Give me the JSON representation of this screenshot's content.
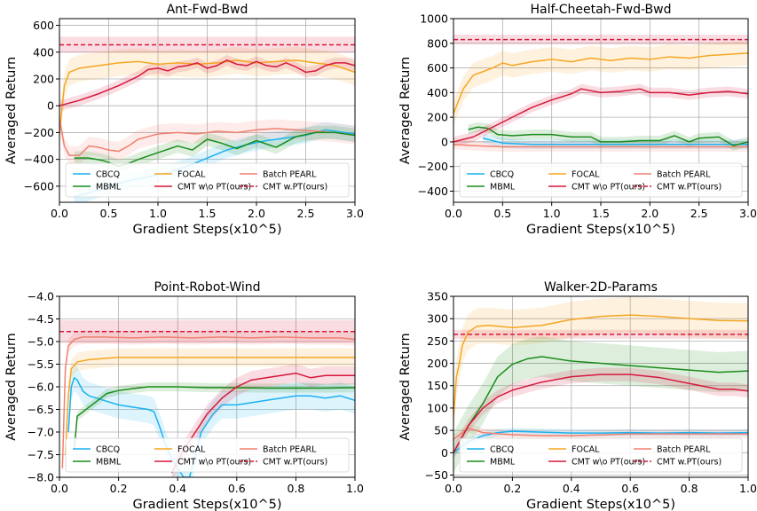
{
  "chart_data": [
    {
      "type": "line",
      "title": "Ant-Fwd-Bwd",
      "xlabel": "Gradient Steps(x10^5)",
      "ylabel": "Averaged Return",
      "xlim": [
        0,
        3.0
      ],
      "ylim": [
        -720,
        650
      ],
      "xticks": [
        "0.0",
        "0.5",
        "1.0",
        "1.5",
        "2.0",
        "2.5",
        "3.0"
      ],
      "yticks": [
        "600",
        "400",
        "200",
        "0",
        "−200",
        "−400",
        "−600"
      ],
      "grid": true,
      "legend_placement": "bottom",
      "series": [
        {
          "name": "CBCQ",
          "color": "#1ab2f0",
          "band": 60,
          "x": [
            0.15,
            0.3,
            0.5,
            0.7,
            0.9,
            1.1,
            1.3,
            1.5,
            1.7,
            1.9,
            2.1,
            2.3,
            2.5,
            2.6,
            2.7,
            2.8,
            2.9,
            3.0
          ],
          "y": [
            -680,
            -650,
            -600,
            -560,
            -530,
            -500,
            -450,
            -390,
            -330,
            -290,
            -260,
            -240,
            -220,
            -200,
            -180,
            -190,
            -200,
            -210
          ]
        },
        {
          "name": "FOCAL",
          "color": "#f5a623",
          "band": 100,
          "x": [
            0.0,
            0.05,
            0.1,
            0.2,
            0.4,
            0.6,
            0.8,
            1.0,
            1.2,
            1.4,
            1.6,
            1.8,
            2.0,
            2.2,
            2.4,
            2.6,
            2.8,
            3.0
          ],
          "y": [
            -200,
            150,
            250,
            280,
            300,
            320,
            330,
            310,
            320,
            310,
            320,
            340,
            320,
            330,
            340,
            320,
            300,
            250
          ]
        },
        {
          "name": "Batch PEARL",
          "color": "#f08070",
          "band": 70,
          "x": [
            0.0,
            0.05,
            0.1,
            0.2,
            0.3,
            0.4,
            0.5,
            0.6,
            0.7,
            0.8,
            1.0,
            1.2,
            1.4,
            1.6,
            1.8,
            2.0,
            2.2,
            2.4,
            2.6,
            2.8,
            3.0
          ],
          "y": [
            -100,
            -300,
            -370,
            -370,
            -300,
            -310,
            -330,
            -340,
            -300,
            -250,
            -210,
            -200,
            -210,
            -190,
            -200,
            -180,
            -170,
            -180,
            -190,
            -200,
            -220
          ]
        },
        {
          "name": "MBML",
          "color": "#1a8c1a",
          "band": 50,
          "x": [
            0.15,
            0.3,
            0.45,
            0.6,
            0.7,
            0.8,
            1.0,
            1.2,
            1.35,
            1.5,
            1.65,
            1.8,
            2.0,
            2.2,
            2.4,
            2.6,
            2.8,
            3.0
          ],
          "y": [
            -390,
            -390,
            -410,
            -450,
            -430,
            -400,
            -350,
            -300,
            -330,
            -250,
            -280,
            -320,
            -260,
            -310,
            -230,
            -200,
            -200,
            -220
          ]
        },
        {
          "name": "CMT w\\o PT(ours)",
          "color": "#d7183c",
          "band": 40,
          "x": [
            0.0,
            0.2,
            0.4,
            0.6,
            0.8,
            0.9,
            1.0,
            1.1,
            1.2,
            1.3,
            1.4,
            1.5,
            1.6,
            1.7,
            1.8,
            1.9,
            2.0,
            2.1,
            2.2,
            2.3,
            2.4,
            2.5,
            2.6,
            2.7,
            2.8,
            2.9,
            3.0
          ],
          "y": [
            0,
            40,
            90,
            150,
            220,
            270,
            280,
            260,
            290,
            300,
            320,
            280,
            300,
            340,
            310,
            300,
            330,
            300,
            290,
            320,
            290,
            250,
            260,
            300,
            320,
            320,
            300
          ]
        },
        {
          "name": "CMT w.PT(ours)",
          "color": "#d7183c",
          "dashed": true,
          "band": 60,
          "x": [
            0.0,
            3.0
          ],
          "y": [
            455,
            455
          ]
        }
      ]
    },
    {
      "type": "line",
      "title": "Half-Cheetah-Fwd-Bwd",
      "xlabel": "Gradient Steps(x10^5)",
      "ylabel": "Averaged Return",
      "xlim": [
        0,
        3.0
      ],
      "ylim": [
        -490,
        1000
      ],
      "xticks": [
        "0.0",
        "0.5",
        "1.0",
        "1.5",
        "2.0",
        "2.5",
        "3.0"
      ],
      "yticks": [
        "1000",
        "800",
        "600",
        "400",
        "200",
        "0",
        "−200",
        "−400"
      ],
      "grid": true,
      "legend_placement": "bottom",
      "series": [
        {
          "name": "CBCQ",
          "color": "#1ab2f0",
          "band": 40,
          "x": [
            0.3,
            0.5,
            0.8,
            1.0,
            1.5,
            2.0,
            2.5,
            3.0
          ],
          "y": [
            30,
            -10,
            -20,
            -20,
            -20,
            -20,
            -20,
            -20
          ]
        },
        {
          "name": "FOCAL",
          "color": "#f5a623",
          "band": 100,
          "x": [
            0.0,
            0.1,
            0.2,
            0.3,
            0.4,
            0.5,
            0.6,
            0.8,
            1.0,
            1.2,
            1.4,
            1.6,
            1.8,
            2.0,
            2.2,
            2.4,
            2.6,
            2.8,
            3.0
          ],
          "y": [
            230,
            430,
            540,
            570,
            600,
            640,
            620,
            650,
            670,
            650,
            680,
            660,
            680,
            670,
            690,
            680,
            700,
            710,
            720
          ]
        },
        {
          "name": "Batch PEARL",
          "color": "#f08070",
          "band": 40,
          "x": [
            0.0,
            0.2,
            0.5,
            1.0,
            1.5,
            2.0,
            2.5,
            3.0
          ],
          "y": [
            -20,
            -30,
            -40,
            -40,
            -40,
            -40,
            -40,
            -40
          ]
        },
        {
          "name": "MBML",
          "color": "#1a8c1a",
          "band": 40,
          "x": [
            0.15,
            0.25,
            0.35,
            0.45,
            0.6,
            0.8,
            1.0,
            1.2,
            1.4,
            1.5,
            1.7,
            1.9,
            2.1,
            2.25,
            2.4,
            2.5,
            2.7,
            2.85,
            3.0
          ],
          "y": [
            100,
            120,
            110,
            60,
            50,
            60,
            60,
            40,
            40,
            0,
            0,
            10,
            10,
            50,
            0,
            30,
            40,
            -30,
            0
          ]
        },
        {
          "name": "CMT w\\o PT(ours)",
          "color": "#d7183c",
          "band": 40,
          "x": [
            0.0,
            0.2,
            0.4,
            0.6,
            0.8,
            1.0,
            1.2,
            1.3,
            1.5,
            1.7,
            1.9,
            2.0,
            2.2,
            2.4,
            2.6,
            2.8,
            3.0
          ],
          "y": [
            0,
            40,
            120,
            200,
            280,
            340,
            390,
            430,
            400,
            410,
            430,
            400,
            400,
            380,
            400,
            410,
            390
          ]
        },
        {
          "name": "CMT w.PT(ours)",
          "color": "#d7183c",
          "dashed": true,
          "band": 40,
          "x": [
            0.0,
            3.0
          ],
          "y": [
            830,
            830
          ]
        }
      ]
    },
    {
      "type": "line",
      "title": "Point-Robot-Wind",
      "xlabel": "Gradient Steps(x10^5)",
      "ylabel": "Averaged Return",
      "xlim": [
        0,
        1.0
      ],
      "ylim": [
        -8.0,
        -4.0
      ],
      "xticks": [
        "0.0",
        "0.2",
        "0.4",
        "0.6",
        "0.8",
        "1.0"
      ],
      "yticks": [
        "−4.0",
        "−4.5",
        "−5.0",
        "−5.5",
        "−6.0",
        "−6.5",
        "−7.0",
        "−7.5",
        "−8.0"
      ],
      "grid": true,
      "legend_placement": "bottom",
      "series": [
        {
          "name": "CBCQ",
          "color": "#1ab2f0",
          "band": 0.3,
          "x": [
            0.03,
            0.04,
            0.05,
            0.06,
            0.08,
            0.1,
            0.15,
            0.2,
            0.25,
            0.3,
            0.32,
            0.34,
            0.36,
            0.38,
            0.4,
            0.42,
            0.44,
            0.46,
            0.48,
            0.5,
            0.52,
            0.55,
            0.6,
            0.65,
            0.7,
            0.75,
            0.8,
            0.85,
            0.9,
            0.95,
            1.0
          ],
          "y": [
            -7.0,
            -6.0,
            -5.8,
            -5.85,
            -6.1,
            -6.2,
            -6.3,
            -6.4,
            -6.45,
            -6.5,
            -6.55,
            -6.9,
            -7.3,
            -7.6,
            -7.8,
            -8.0,
            -8.0,
            -7.5,
            -7.0,
            -6.8,
            -6.6,
            -6.4,
            -6.4,
            -6.35,
            -6.3,
            -6.25,
            -6.2,
            -6.2,
            -6.25,
            -6.2,
            -6.3
          ]
        },
        {
          "name": "FOCAL",
          "color": "#f5a623",
          "band": 0.2,
          "x": [
            0.02,
            0.03,
            0.04,
            0.06,
            0.1,
            0.2,
            0.3,
            0.4,
            0.5,
            0.6,
            0.7,
            0.8,
            0.9,
            1.0
          ],
          "y": [
            -7.5,
            -6.2,
            -5.6,
            -5.45,
            -5.4,
            -5.35,
            -5.35,
            -5.35,
            -5.35,
            -5.35,
            -5.35,
            -5.35,
            -5.35,
            -5.35
          ]
        },
        {
          "name": "Batch PEARL",
          "color": "#f08070",
          "band": 0.15,
          "x": [
            0.01,
            0.02,
            0.03,
            0.05,
            0.08,
            0.15,
            0.25,
            0.35,
            0.45,
            0.55,
            0.65,
            0.75,
            0.85,
            0.95,
            1.0
          ],
          "y": [
            -7.8,
            -5.6,
            -5.1,
            -4.95,
            -4.9,
            -4.9,
            -4.92,
            -4.9,
            -4.92,
            -4.9,
            -4.92,
            -4.9,
            -4.92,
            -4.92,
            -4.95
          ]
        },
        {
          "name": "MBML",
          "color": "#1a8c1a",
          "band": 0.1,
          "x": [
            0.05,
            0.06,
            0.07,
            0.1,
            0.13,
            0.16,
            0.2,
            0.25,
            0.3,
            0.35,
            0.4,
            0.5,
            0.6,
            0.7,
            0.8,
            0.9,
            1.0
          ],
          "y": [
            -7.4,
            -6.65,
            -6.6,
            -6.45,
            -6.3,
            -6.15,
            -6.08,
            -6.04,
            -6.0,
            -6.0,
            -6.0,
            -6.02,
            -6.02,
            -6.03,
            -6.03,
            -6.03,
            -6.02
          ]
        },
        {
          "name": "CMT w\\o PT(ours)",
          "color": "#d7183c",
          "band": 0.2,
          "x": [
            0.38,
            0.42,
            0.46,
            0.5,
            0.55,
            0.6,
            0.65,
            0.7,
            0.75,
            0.8,
            0.85,
            0.9,
            0.95,
            1.0
          ],
          "y": [
            -7.9,
            -7.4,
            -7.0,
            -6.6,
            -6.25,
            -6.0,
            -5.85,
            -5.8,
            -5.75,
            -5.7,
            -5.8,
            -5.75,
            -5.75,
            -5.75
          ]
        },
        {
          "name": "CMT w.PT(ours)",
          "color": "#d7183c",
          "dashed": true,
          "band": 0.25,
          "x": [
            0.0,
            1.0
          ],
          "y": [
            -4.78,
            -4.78
          ]
        }
      ]
    },
    {
      "type": "line",
      "title": "Walker-2D-Params",
      "xlabel": "Gradient Steps(x10^5)",
      "ylabel": "Averaged Return",
      "xlim": [
        0,
        1.0
      ],
      "ylim": [
        -55,
        350
      ],
      "xticks": [
        "0.0",
        "0.2",
        "0.4",
        "0.6",
        "0.8",
        "1.0"
      ],
      "yticks": [
        "350",
        "300",
        "250",
        "200",
        "150",
        "100",
        "50",
        "0",
        "−50"
      ],
      "grid": true,
      "legend_placement": "bottom",
      "series": [
        {
          "name": "CBCQ",
          "color": "#1ab2f0",
          "band": 8,
          "x": [
            0.0,
            0.05,
            0.1,
            0.15,
            0.2,
            0.3,
            0.4,
            0.5,
            0.6,
            0.7,
            0.8,
            0.9,
            1.0
          ],
          "y": [
            0,
            25,
            38,
            45,
            48,
            46,
            44,
            44,
            45,
            44,
            45,
            44,
            45
          ]
        },
        {
          "name": "FOCAL",
          "color": "#f5a623",
          "band": 40,
          "x": [
            0.0,
            0.01,
            0.02,
            0.03,
            0.05,
            0.08,
            0.12,
            0.2,
            0.3,
            0.4,
            0.5,
            0.6,
            0.7,
            0.8,
            0.9,
            1.0
          ],
          "y": [
            80,
            170,
            200,
            240,
            270,
            283,
            285,
            280,
            285,
            298,
            305,
            308,
            305,
            300,
            296,
            295
          ]
        },
        {
          "name": "Batch PEARL",
          "color": "#f08070",
          "band": 10,
          "x": [
            0.0,
            0.05,
            0.1,
            0.2,
            0.3,
            0.4,
            0.5,
            0.6,
            0.7,
            0.8,
            0.9,
            1.0
          ],
          "y": [
            30,
            55,
            45,
            40,
            38,
            38,
            40,
            42,
            42,
            42,
            42,
            42
          ]
        },
        {
          "name": "MBML",
          "color": "#1a8c1a",
          "band": 45,
          "x": [
            0.0,
            0.05,
            0.1,
            0.15,
            0.2,
            0.25,
            0.3,
            0.35,
            0.4,
            0.5,
            0.6,
            0.7,
            0.8,
            0.9,
            1.0
          ],
          "y": [
            0,
            60,
            110,
            170,
            198,
            210,
            215,
            210,
            205,
            200,
            195,
            190,
            185,
            180,
            183
          ]
        },
        {
          "name": "CMT w\\o PT(ours)",
          "color": "#d7183c",
          "band": 15,
          "x": [
            0.0,
            0.05,
            0.1,
            0.15,
            0.2,
            0.3,
            0.4,
            0.5,
            0.6,
            0.7,
            0.8,
            0.9,
            0.95,
            1.0
          ],
          "y": [
            0,
            60,
            100,
            125,
            140,
            158,
            170,
            175,
            175,
            168,
            155,
            142,
            142,
            138
          ]
        },
        {
          "name": "CMT w.PT(ours)",
          "color": "#d7183c",
          "dashed": true,
          "band": 10,
          "x": [
            0.0,
            1.0
          ],
          "y": [
            265,
            265
          ]
        }
      ]
    }
  ]
}
